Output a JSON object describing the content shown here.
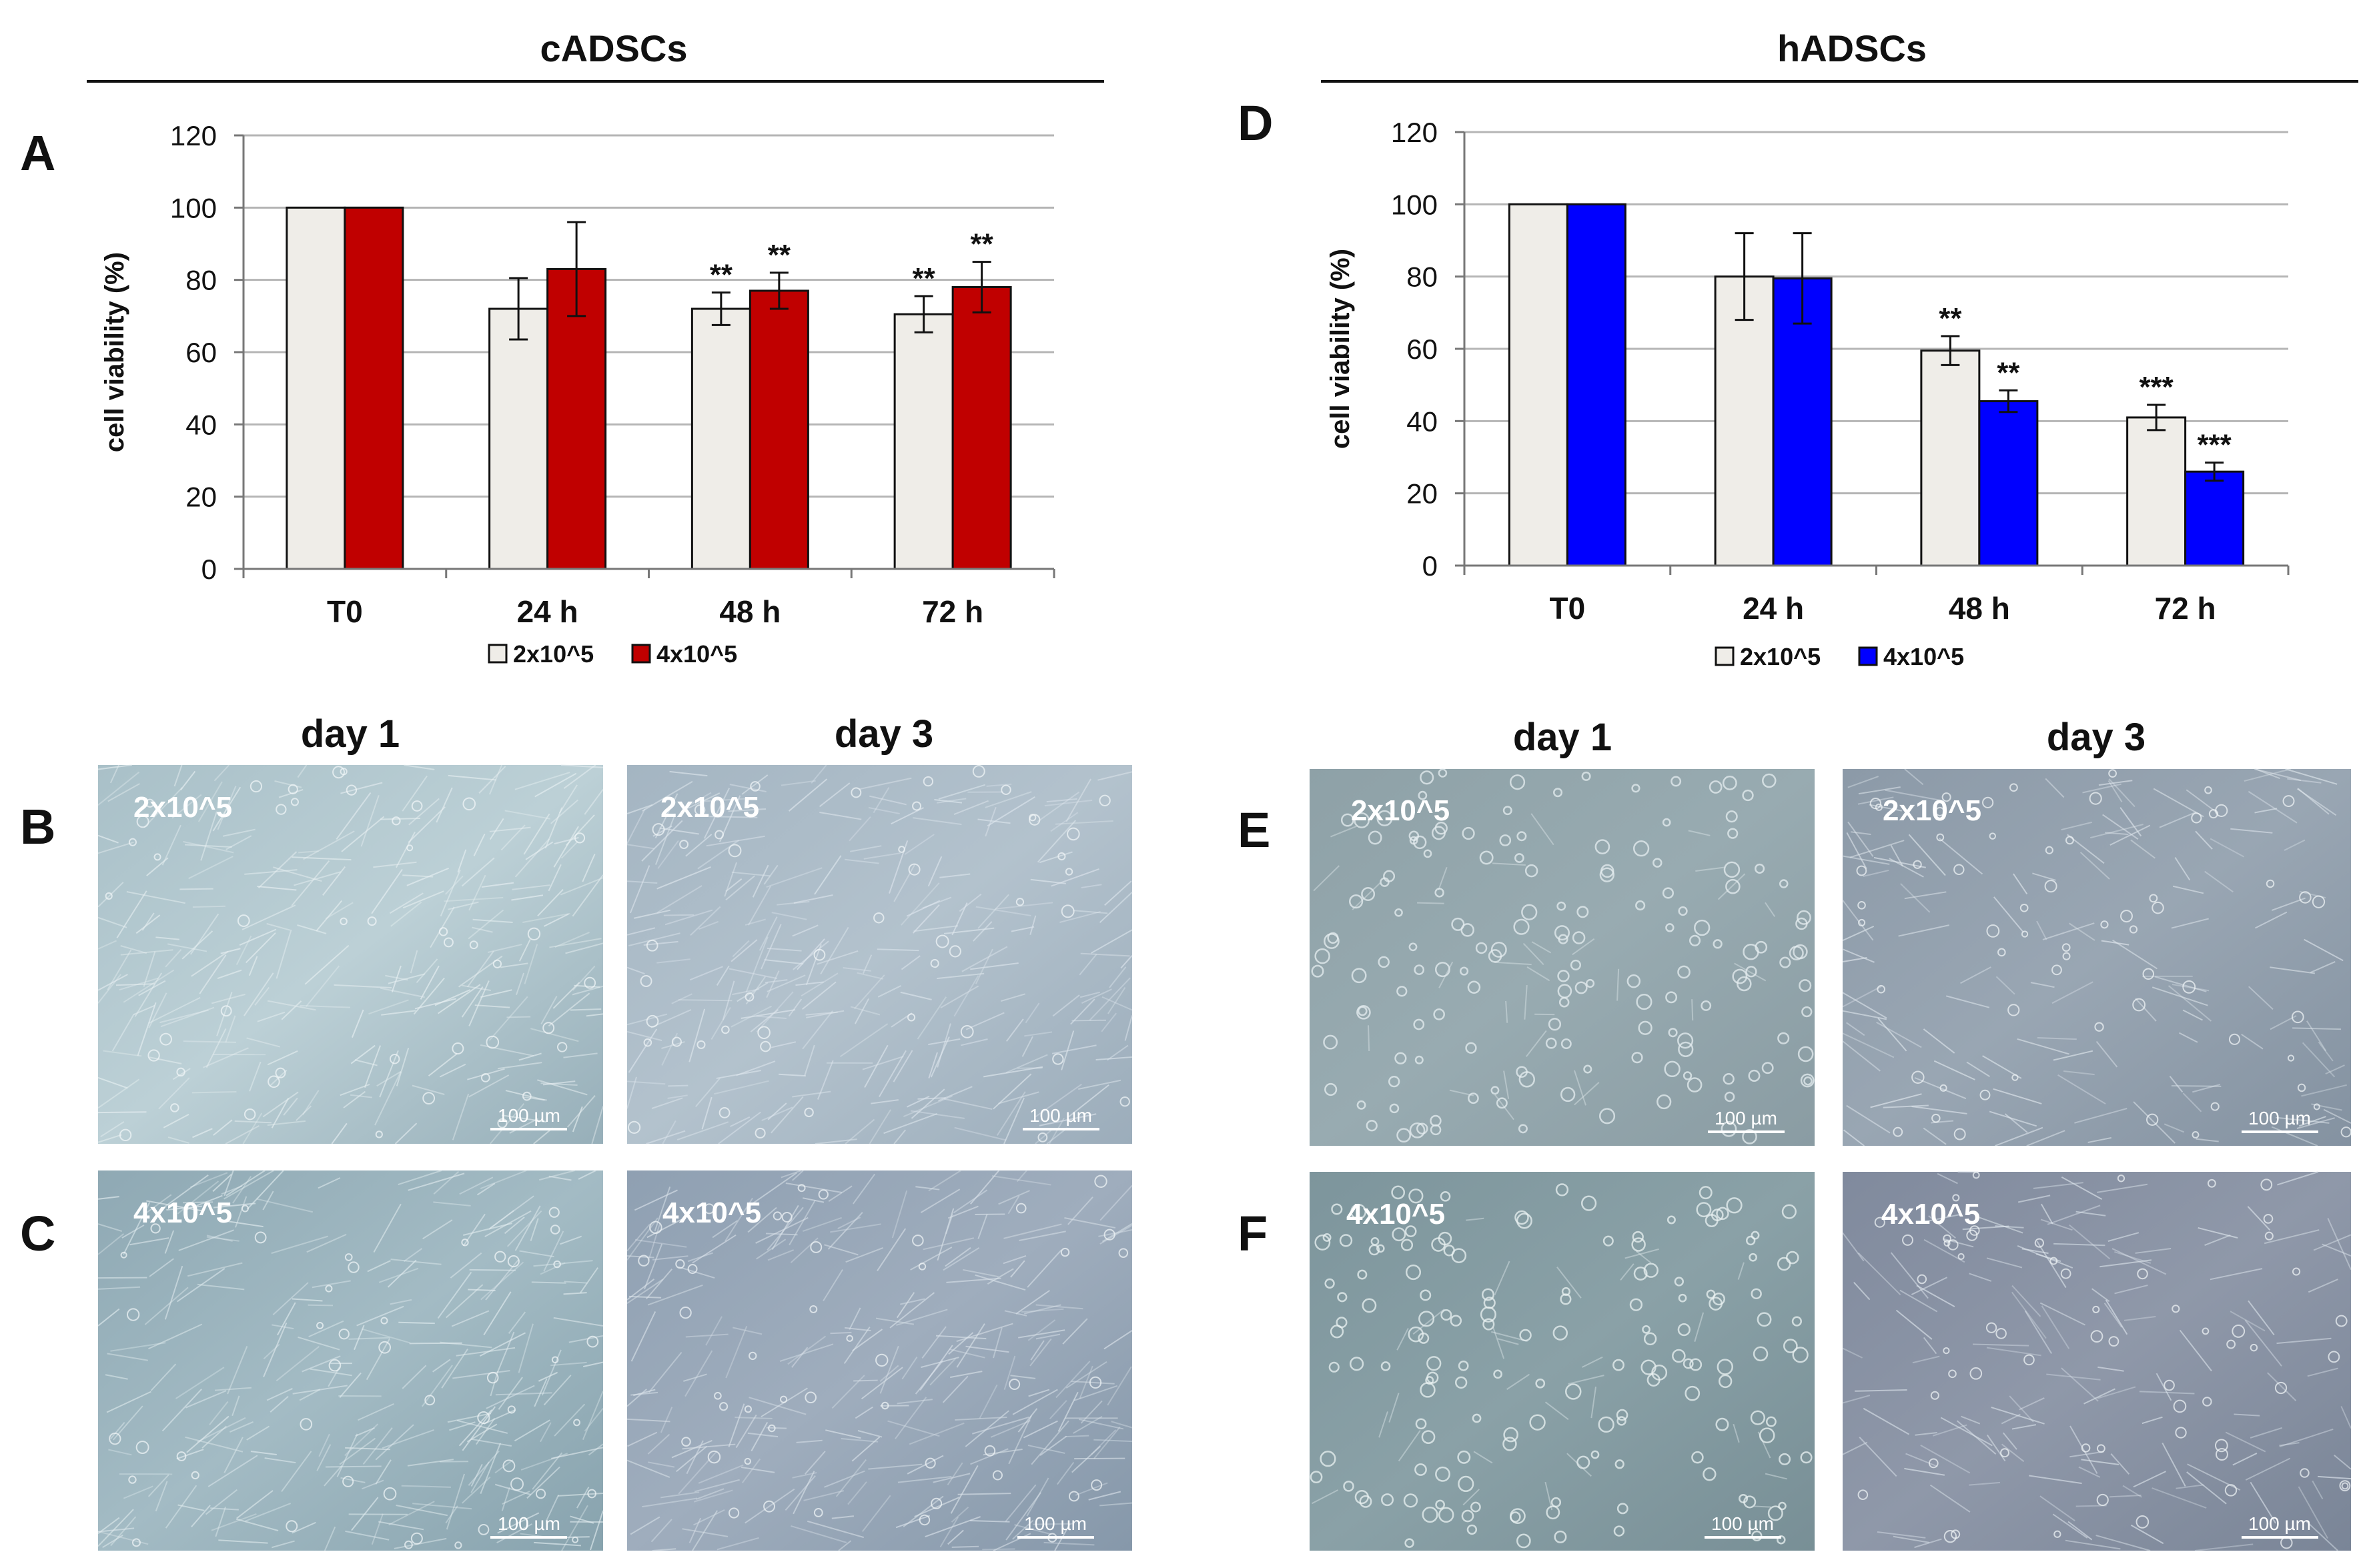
{
  "figure": {
    "left_group_title": "cADSCs",
    "right_group_title": "hADSCs",
    "panel_letters": [
      "A",
      "B",
      "C",
      "D",
      "E",
      "F"
    ],
    "micro_col_titles": {
      "day1": "day 1",
      "day3": "day 3"
    },
    "scale_bar_label": "100 µm",
    "micro_panels": [
      {
        "panel": "B",
        "day": "day 1",
        "density": "2x10^5",
        "type": "confluent-fibroblast"
      },
      {
        "panel": "B",
        "day": "day 3",
        "density": "2x10^5",
        "type": "confluent-fibroblast"
      },
      {
        "panel": "C",
        "day": "day 1",
        "density": "4x10^5",
        "type": "confluent-fibroblast"
      },
      {
        "panel": "C",
        "day": "day 3",
        "density": "4x10^5",
        "type": "confluent-fibroblast"
      },
      {
        "panel": "E",
        "day": "day 1",
        "density": "2x10^5",
        "type": "sparse-round-cells"
      },
      {
        "panel": "E",
        "day": "day 3",
        "density": "2x10^5",
        "type": "elongated-cells"
      },
      {
        "panel": "F",
        "day": "day 1",
        "density": "4x10^5",
        "type": "sparse-round-cells"
      },
      {
        "panel": "F",
        "day": "day 3",
        "density": "4x10^5",
        "type": "elongated-cells"
      }
    ]
  },
  "chart_data": [
    {
      "panel": "A",
      "type": "bar",
      "title": "cADSCs",
      "xlabel": "",
      "ylabel": "cell viability (%)",
      "ylim": [
        0,
        120
      ],
      "yticks": [
        0,
        20,
        40,
        60,
        80,
        100,
        120
      ],
      "grid": true,
      "categories": [
        "T0",
        "24 h",
        "48 h",
        "72 h"
      ],
      "legend_position": "bottom-center",
      "series": [
        {
          "name": "2x10^5",
          "color": "#efede8",
          "values": [
            100,
            72,
            72,
            70.5
          ],
          "errors": [
            0,
            8.5,
            4.5,
            5
          ],
          "significance": [
            "",
            "",
            "**",
            "**"
          ]
        },
        {
          "name": "4x10^5",
          "color": "#c00000",
          "values": [
            100,
            83,
            77,
            78
          ],
          "errors": [
            0,
            13,
            5,
            7
          ],
          "significance": [
            "",
            "",
            "**",
            "**"
          ]
        }
      ]
    },
    {
      "panel": "D",
      "type": "bar",
      "title": "hADSCs",
      "xlabel": "",
      "ylabel": "cell viability (%)",
      "ylim": [
        0,
        120
      ],
      "yticks": [
        0,
        20,
        40,
        60,
        80,
        100,
        120
      ],
      "grid": true,
      "categories": [
        "T0",
        "24 h",
        "48 h",
        "72 h"
      ],
      "legend_position": "bottom-center",
      "series": [
        {
          "name": "2x10^5",
          "color": "#efede8",
          "values": [
            100,
            80,
            59.5,
            41
          ],
          "errors": [
            0,
            12,
            4,
            3.5
          ],
          "significance": [
            "",
            "",
            "**",
            "***"
          ]
        },
        {
          "name": "4x10^5",
          "color": "#0000ff",
          "values": [
            100,
            79.5,
            45.5,
            26
          ],
          "errors": [
            0,
            12.5,
            3,
            2.5
          ],
          "significance": [
            "",
            "",
            "**",
            "***"
          ]
        }
      ]
    }
  ]
}
